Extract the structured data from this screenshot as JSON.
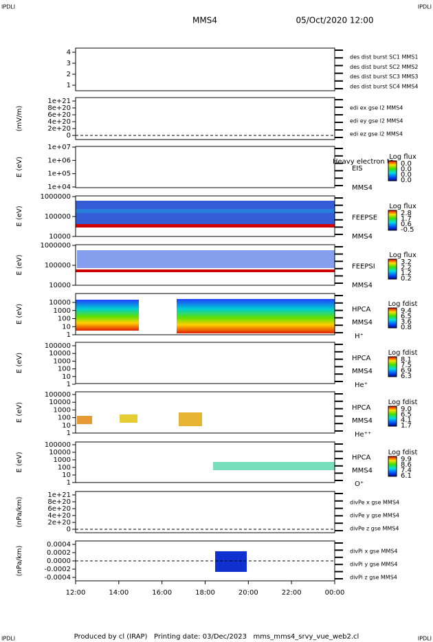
{
  "header": {
    "left": "IPDLI",
    "right": "IPDLI",
    "title": "MMS4",
    "date": "05/Oct/2020 12:00"
  },
  "footer": {
    "left": "IPDLI",
    "right": "IPDLI",
    "credit": "Produced by cl (IRAP)   Printing date: 03/Dec/2023   mms_mms4_srvy_vue_web2.cl"
  },
  "xticks": [
    "12:00",
    "14:00",
    "16:00",
    "18:00",
    "20:00",
    "22:00",
    "00:00"
  ],
  "panels": [
    {
      "yticks": [
        "4",
        "3",
        "2",
        "1"
      ],
      "legend": [
        {
          "text": "des dist burst SC1 MMS1",
          "color": "#0000c0"
        },
        {
          "text": "des dist burst SC2 MMS2",
          "color": "#d000d0"
        },
        {
          "text": "des dist burst SC3 MMS3",
          "color": "#d00000"
        },
        {
          "text": "des dist burst SC4 MMS4",
          "color": "#00c000"
        }
      ]
    },
    {
      "ylabel": "(mV/m)",
      "yticks": [
        "1e+21",
        "8e+20",
        "6e+20",
        "4e+20",
        "2e+20",
        "0"
      ],
      "legend": [
        {
          "text": "edi ex gse l2 MMS4",
          "color": "#d00000"
        },
        {
          "text": "edi ey gse l2 MMS4",
          "color": "#00c000"
        },
        {
          "text": "edi ez gse l2 MMS4",
          "color": "#0000c0"
        }
      ]
    },
    {
      "ylabel": "E (eV)",
      "yticks": [
        "1e+07",
        "1e+06",
        "1e+05",
        "1e+04"
      ],
      "instrument": "EIS",
      "spacecraft": "MMS4",
      "overlay_text": "Heavy electron to",
      "cbar_title": "Log flux",
      "cbar_ticks": [
        "0.0",
        "0.0",
        "0.0",
        "0.0"
      ]
    },
    {
      "ylabel": "E (eV)",
      "yticks": [
        "1000000",
        "100000",
        "10000"
      ],
      "instrument": "FEEPSE",
      "spacecraft": "MMS4",
      "cbar_title": "Log flux",
      "cbar_ticks": [
        "2.8",
        "1.7",
        "0.6",
        "-0.5"
      ]
    },
    {
      "ylabel": "E (eV)",
      "yticks": [
        "1000000",
        "100000",
        "10000"
      ],
      "instrument": "FEEPSI",
      "spacecraft": "MMS4",
      "cbar_title": "Log flux",
      "cbar_ticks": [
        "3.2",
        "2.2",
        "1.2",
        "0.2"
      ]
    },
    {
      "ylabel": "E (eV)",
      "yticks": [
        "10000",
        "1000",
        "100",
        "10",
        "1"
      ],
      "instrument": "HPCA",
      "spacecraft": "MMS4",
      "species": "H⁺",
      "cbar_title": "Log fdist",
      "cbar_ticks": [
        "9.4",
        "6.5",
        "3.6",
        "0.8"
      ]
    },
    {
      "ylabel": "E (eV)",
      "yticks": [
        "100000",
        "10000",
        "1000",
        "100",
        "10",
        "1"
      ],
      "instrument": "HPCA",
      "spacecraft": "MMS4",
      "species": "He⁺",
      "cbar_title": "Log fdist",
      "cbar_ticks": [
        "8.1",
        "7.5",
        "6.9",
        "6.3"
      ]
    },
    {
      "ylabel": "E (eV)",
      "yticks": [
        "100000",
        "10000",
        "1000",
        "100",
        "10",
        "1"
      ],
      "instrument": "HPCA",
      "spacecraft": "MMS4",
      "species": "He⁺⁺",
      "cbar_title": "Log fdist",
      "cbar_ticks": [
        "9.0",
        "6.5",
        "4.1",
        "1.7"
      ]
    },
    {
      "ylabel": "E (eV)",
      "yticks": [
        "100000",
        "10000",
        "1000",
        "100",
        "10",
        "1"
      ],
      "instrument": "HPCA",
      "spacecraft": "MMS4",
      "species": "O⁺",
      "cbar_title": "Log fdist",
      "cbar_ticks": [
        "9.9",
        "8.6",
        "7.4",
        "6.1"
      ]
    },
    {
      "ylabel": "(nPa/km)",
      "yticks": [
        "1e+21",
        "8e+20",
        "6e+20",
        "4e+20",
        "2e+20",
        "0"
      ],
      "legend": [
        {
          "text": "divPe x gse MMS4",
          "color": "#d00000"
        },
        {
          "text": "divPe y gse MMS4",
          "color": "#00c000"
        },
        {
          "text": "divPe z gse MMS4",
          "color": "#0000c0"
        }
      ]
    },
    {
      "ylabel": "(nPa/km)",
      "yticks": [
        "0.0004",
        "0.0002",
        "0.0000",
        "-0.0002",
        "-0.0004"
      ],
      "legend": [
        {
          "text": "divPi x gse MMS4",
          "color": "#d00000"
        },
        {
          "text": "divPi y gse MMS4",
          "color": "#00c000"
        },
        {
          "text": "divPi z gse MMS4",
          "color": "#0000c0"
        }
      ]
    }
  ]
}
